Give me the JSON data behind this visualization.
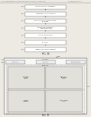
{
  "bg_color": "#ede9e3",
  "header_text": "United States Patent Application Publication",
  "header_mid": "Jan. 00, 0000  Sheet 0 of 00",
  "header_right": "US 0000/0000000 A1",
  "fig16_title": "FIG. 16",
  "fig17_title": "FIG. 17",
  "fig16_boxes": [
    "OBTAIN SITUATIONAL AWARENESS",
    "DETERMINE THREAT ASSESSMENT",
    "COMPUTE CONTACT AND RENDEZVOUS\nTRAJECTORY",
    "ADJUST BOOM ACCORDINGLY\n(CONTINUOUS LOOP)",
    "MONITOR FUEL DELIVERY",
    "DISENGAGE",
    "RENDEZVOUS/CONTACT COMPLETE"
  ],
  "fig16_labels": [
    "S600",
    "S602",
    "S604",
    "S606",
    "S608",
    "S610",
    "S612"
  ],
  "box_color": "#ffffff",
  "box_edge": "#444444",
  "arrow_color": "#444444",
  "text_color": "#111111",
  "line_color": "#444444",
  "fig17_outer_label": "SYSTEM 1",
  "fig17_top_boxes": [
    "COMMANDER",
    "NAVIGATOR",
    "BOOM OPERATOR"
  ],
  "fig17_inner_label": "PROCESSOR",
  "fig17_inner_boxes_row1": [
    "TRAJECTORY\nPLANNING\nSYSTEM",
    "SITUATIONAL\nAWARENESS\nSYSTEM"
  ],
  "fig17_inner_boxes_row2": [
    "THREAT\nASSESSMENT\nSYSTEM",
    "BOOM CONTROL\nSYSTEM"
  ],
  "fig17_ref_top": "1700",
  "fig17_ref_left1": "1702",
  "fig17_ref_left2": "1704",
  "fig17_ref_right": "1706"
}
